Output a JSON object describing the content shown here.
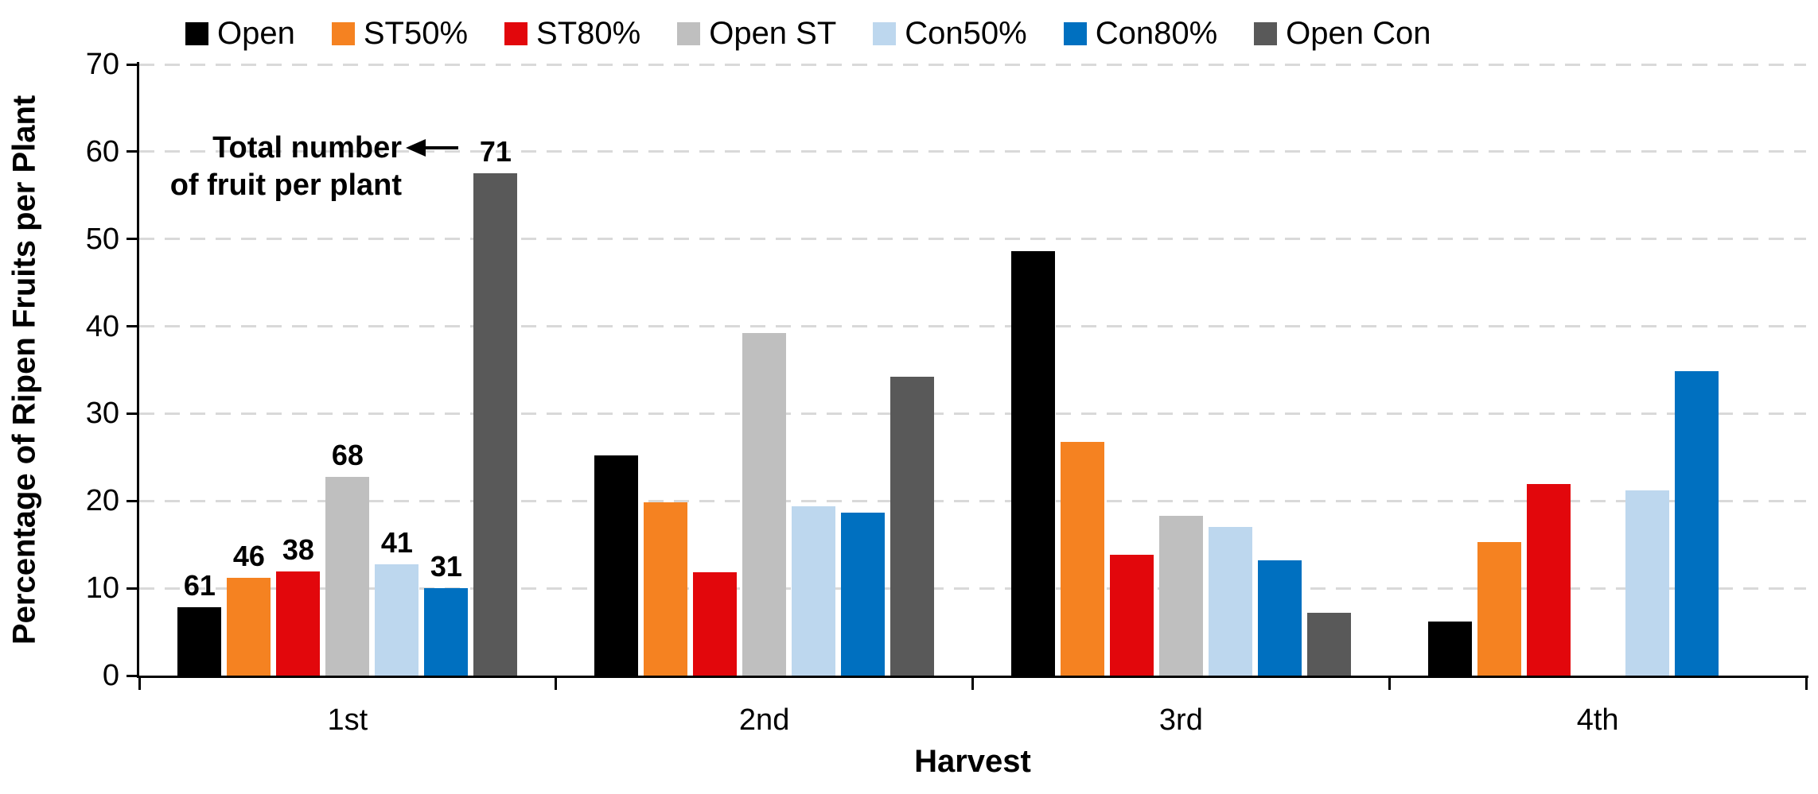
{
  "chart_data": {
    "type": "bar",
    "title": "",
    "xlabel": "Harvest",
    "ylabel": "Percentage of Ripen Fruits per Plant",
    "ylim": [
      0,
      70
    ],
    "yticks": [
      0,
      10,
      20,
      30,
      40,
      50,
      60,
      70
    ],
    "categories": [
      "1st",
      "2nd",
      "3rd",
      "4th"
    ],
    "series": [
      {
        "name": "Open",
        "color": "#000000",
        "values": [
          7.8,
          25.2,
          48.6,
          6.2
        ]
      },
      {
        "name": "ST50%",
        "color": "#F58221",
        "values": [
          11.2,
          19.8,
          26.8,
          15.3
        ]
      },
      {
        "name": "ST80%",
        "color": "#E2070C",
        "values": [
          11.9,
          11.8,
          13.8,
          21.9
        ]
      },
      {
        "name": "Open ST",
        "color": "#BFBFBF",
        "values": [
          22.8,
          39.2,
          18.3,
          null
        ]
      },
      {
        "name": "Con50%",
        "color": "#BDD7EE",
        "values": [
          12.7,
          19.4,
          17.0,
          21.2
        ]
      },
      {
        "name": "Con80%",
        "color": "#0070C0",
        "values": [
          10.0,
          18.7,
          13.2,
          34.9
        ]
      },
      {
        "name": "Open Con",
        "color": "#595959",
        "values": [
          57.5,
          34.2,
          7.2,
          null
        ]
      }
    ],
    "first_group_bar_labels": [
      "61",
      "46",
      "38",
      "68",
      "41",
      "31",
      "71"
    ],
    "annotation": {
      "line1": "Total number",
      "line2": "of fruit per plant"
    },
    "legend_position": "top",
    "grid": "horizontal-dashed",
    "gridline_color": "#D9D9D9",
    "axis_color": "#000000"
  }
}
